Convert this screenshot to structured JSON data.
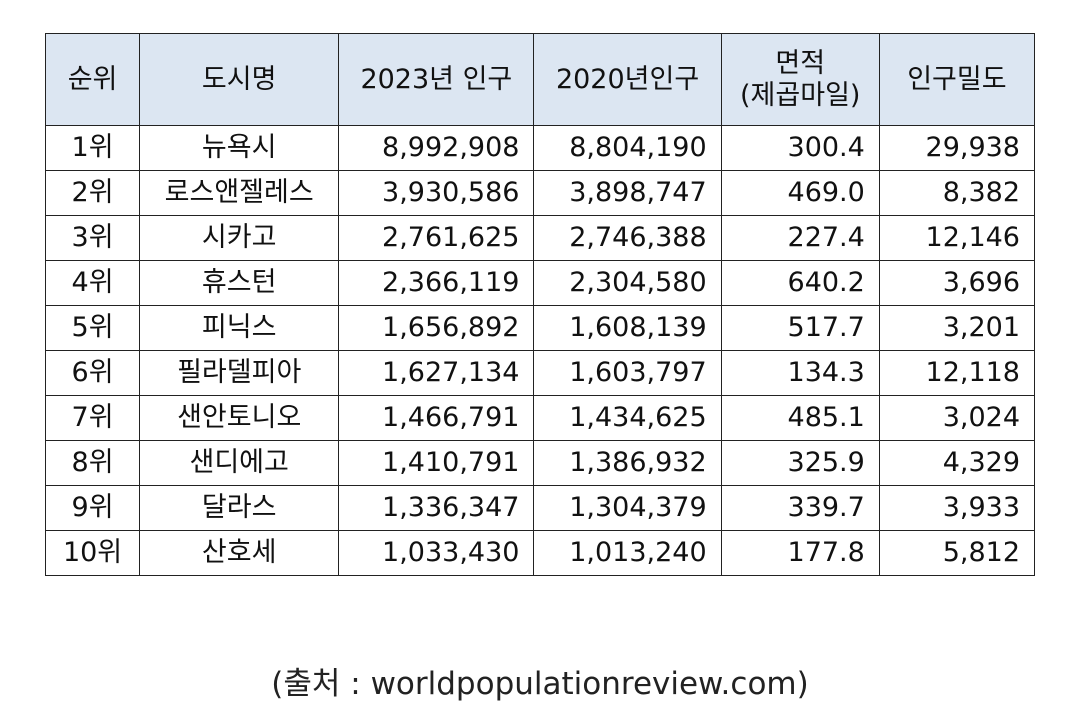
{
  "table": {
    "headers": {
      "rank": "순위",
      "city": "도시명",
      "pop2023": "2023년 인구",
      "pop2020": "2020년인구",
      "area_line1": "면적",
      "area_line2": "(제곱마일)",
      "density": "인구밀도"
    },
    "rows": [
      {
        "rank": "1위",
        "city": "뉴욕시",
        "pop2023": "8,992,908",
        "pop2020": "8,804,190",
        "area": "300.4",
        "density": "29,938"
      },
      {
        "rank": "2위",
        "city": "로스앤젤레스",
        "pop2023": "3,930,586",
        "pop2020": "3,898,747",
        "area": "469.0",
        "density": "8,382"
      },
      {
        "rank": "3위",
        "city": "시카고",
        "pop2023": "2,761,625",
        "pop2020": "2,746,388",
        "area": "227.4",
        "density": "12,146"
      },
      {
        "rank": "4위",
        "city": "휴스턴",
        "pop2023": "2,366,119",
        "pop2020": "2,304,580",
        "area": "640.2",
        "density": "3,696"
      },
      {
        "rank": "5위",
        "city": "피닉스",
        "pop2023": "1,656,892",
        "pop2020": "1,608,139",
        "area": "517.7",
        "density": "3,201"
      },
      {
        "rank": "6위",
        "city": "필라델피아",
        "pop2023": "1,627,134",
        "pop2020": "1,603,797",
        "area": "134.3",
        "density": "12,118"
      },
      {
        "rank": "7위",
        "city": "샌안토니오",
        "pop2023": "1,466,791",
        "pop2020": "1,434,625",
        "area": "485.1",
        "density": "3,024"
      },
      {
        "rank": "8위",
        "city": "샌디에고",
        "pop2023": "1,410,791",
        "pop2020": "1,386,932",
        "area": "325.9",
        "density": "4,329"
      },
      {
        "rank": "9위",
        "city": "달라스",
        "pop2023": "1,336,347",
        "pop2020": "1,304,379",
        "area": "339.7",
        "density": "3,933"
      },
      {
        "rank": "10위",
        "city": "산호세",
        "pop2023": "1,033,430",
        "pop2020": "1,013,240",
        "area": "177.8",
        "density": "5,812"
      }
    ]
  },
  "source_text": "(출처 : worldpopulationreview.com)"
}
